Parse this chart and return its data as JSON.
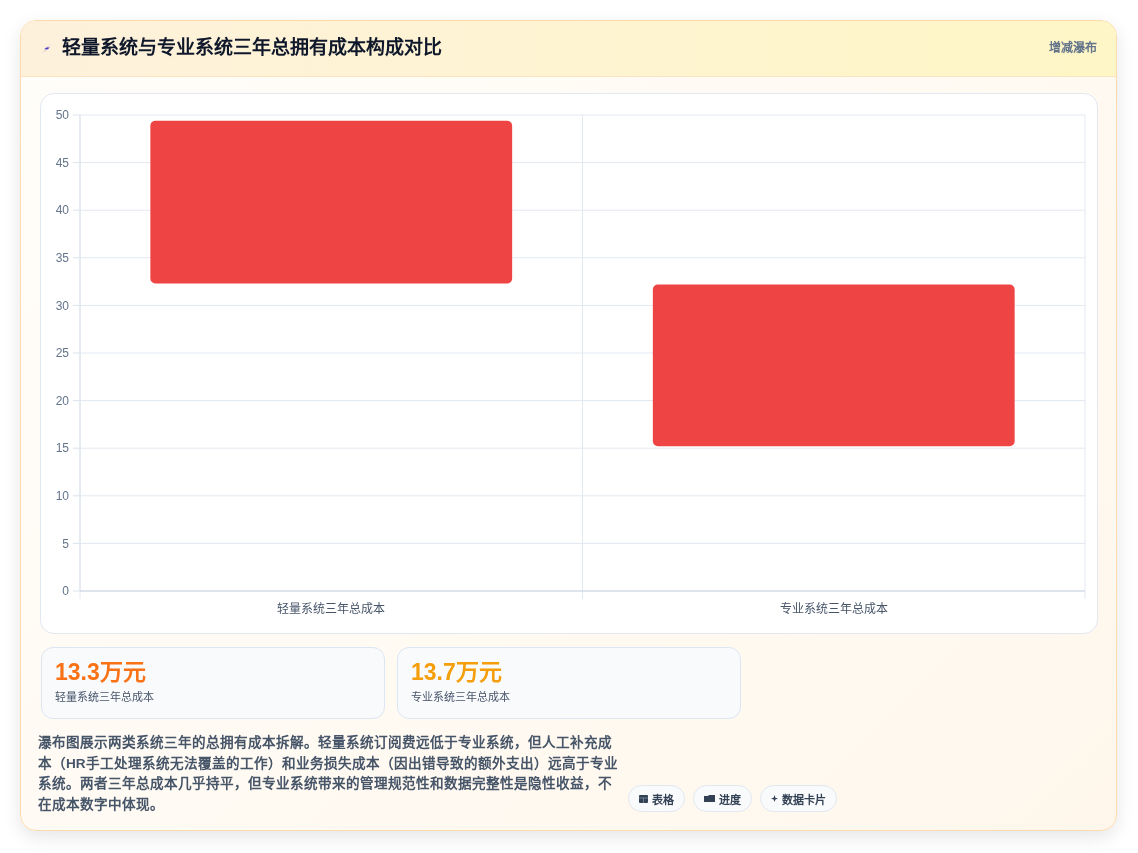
{
  "chart_data": [
    {
      "type": "bar",
      "title": "轻量系统与专业系统三年总拥有成本构成对比",
      "annotations": [
        "增减瀑布",
        "瀑布图展示两类系统三年的总拥有成本拆解。轻量系统订阅费远低于专业系统，但人工补充成本（HR手工处理系统无法覆盖的工作）和业务损失成本（因出错导致的额外支出）远高于专业系统。两者三年总成本几乎持平，但专业系统带来的管理规范性和数据完整性是隐性收益，不在成本数字中体现。",
        "表格",
        "进度",
        "数据卡片"
      ],
      "categories": [
        "轻量系统三年总成本",
        "专业系统三年总成本"
      ],
      "values": [
        17.1,
        17.0
      ],
      "base": [
        32.3,
        15.2
      ],
      "color": "#ef4444",
      "ylim": [
        0,
        50
      ],
      "yticks": [
        0,
        5,
        10,
        15,
        20,
        25,
        30,
        35,
        40,
        45,
        50
      ],
      "grid": true
    },
    {
      "type": "other",
      "annotations": [
        "13.3万元",
        "轻量系统三年总成本",
        "13.7万元",
        "专业系统三年总成本"
      ]
    }
  ]
}
